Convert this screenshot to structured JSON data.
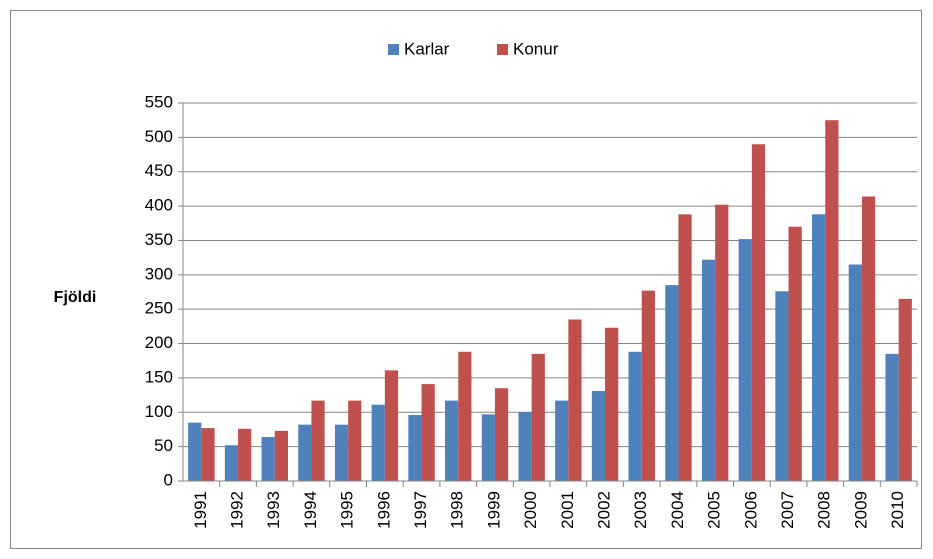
{
  "chart_data": {
    "type": "bar",
    "y_label": "Fjöldi",
    "categories": [
      "1991",
      "1992",
      "1993",
      "1994",
      "1995",
      "1996",
      "1997",
      "1998",
      "1999",
      "2000",
      "2001",
      "2002",
      "2003",
      "2004",
      "2005",
      "2006",
      "2007",
      "2008",
      "2009",
      "2010"
    ],
    "series": [
      {
        "name": "Karlar",
        "color": "#4f81bd",
        "values": [
          85,
          52,
          64,
          82,
          82,
          111,
          96,
          117,
          97,
          100,
          117,
          131,
          188,
          285,
          322,
          352,
          276,
          388,
          315,
          185
        ]
      },
      {
        "name": "Konur",
        "color": "#c0504d",
        "values": [
          77,
          76,
          73,
          117,
          117,
          161,
          141,
          188,
          135,
          185,
          235,
          223,
          277,
          388,
          402,
          490,
          370,
          525,
          414,
          265
        ]
      }
    ],
    "ylim": [
      0,
      550
    ],
    "yticks": [
      0,
      50,
      100,
      150,
      200,
      250,
      300,
      350,
      400,
      450,
      500,
      550
    ],
    "grid": true,
    "legend": "top"
  }
}
